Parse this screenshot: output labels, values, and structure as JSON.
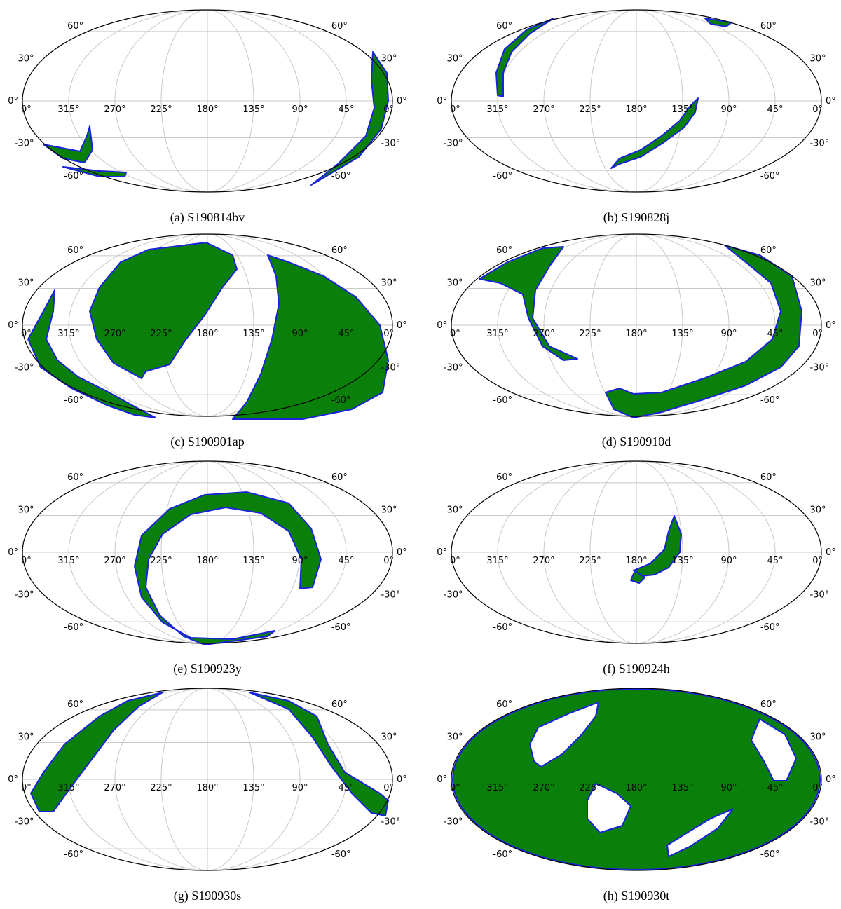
{
  "figure": {
    "projection": "mollweide",
    "grid_longitudes_deg": [
      0,
      45,
      90,
      135,
      180,
      225,
      270,
      315,
      360
    ],
    "grid_latitudes_deg": [
      -60,
      -30,
      0,
      30,
      60
    ],
    "colors": {
      "region_fill": "#0a800a",
      "region_outline": "#1a22dd",
      "grid": "#c8c8c8",
      "frame": "#000000"
    },
    "tick_labels": {
      "lon": [
        "0°",
        "315°",
        "270°",
        "225°",
        "180°",
        "135°",
        "90°",
        "45°",
        "0°"
      ],
      "lat_left": [
        "60°",
        "30°",
        "0°",
        "-30°",
        "-60°"
      ],
      "lat_right": [
        "60°",
        "30°",
        "0°",
        "-30°",
        "-60°"
      ]
    },
    "panels": [
      {
        "caption": "(a) S190814bv"
      },
      {
        "caption": "(b) S190828j"
      },
      {
        "caption": "(c) S190901ap"
      },
      {
        "caption": "(d) S190910d"
      },
      {
        "caption": "(e) S190923y"
      },
      {
        "caption": "(f) S190924h"
      },
      {
        "caption": "(g) S190930s"
      },
      {
        "caption": "(h) S190930t"
      }
    ]
  }
}
